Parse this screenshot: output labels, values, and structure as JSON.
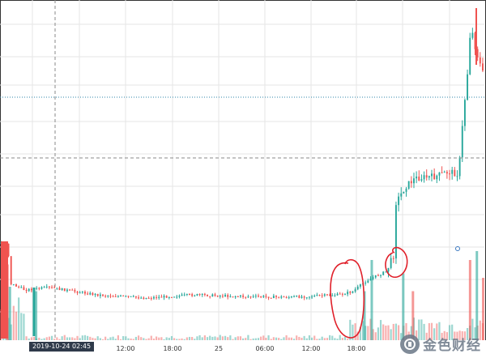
{
  "chart_data": {
    "type": "candlestick",
    "x_tick_labels": [
      "12:00",
      "18:00",
      "25",
      "06:00",
      "12:00",
      "18:00"
    ],
    "crosshair_time_label": "2019-10-24   02:45",
    "colors": {
      "up": "#26a69a",
      "down": "#ef5350",
      "grid": "#e6e6e6",
      "crosshair": "#8a8a8a",
      "price_line": "#2e86a8",
      "annotation": "#e0202a",
      "badge_bg": "#2f3a4a"
    },
    "price_trend": [
      [
        0,
        300
      ],
      [
        0.014,
        300
      ],
      [
        0.02,
        350
      ],
      [
        0.05,
        358
      ],
      [
        0.1,
        355
      ],
      [
        0.2,
        364
      ],
      [
        0.3,
        368
      ],
      [
        0.4,
        364
      ],
      [
        0.5,
        366
      ],
      [
        0.6,
        367
      ],
      [
        0.7,
        364
      ],
      [
        0.73,
        360
      ],
      [
        0.76,
        346
      ],
      [
        0.8,
        335
      ],
      [
        0.815,
        315
      ],
      [
        0.82,
        250
      ],
      [
        0.84,
        230
      ],
      [
        0.86,
        220
      ],
      [
        0.9,
        218
      ],
      [
        0.93,
        212
      ],
      [
        0.95,
        215
      ],
      [
        0.96,
        140
      ],
      [
        0.97,
        80
      ],
      [
        0.975,
        30
      ],
      [
        0.985,
        60
      ],
      [
        1.0,
        90
      ]
    ],
    "volume_spikes": [
      {
        "x": 0.013,
        "v": 0.85,
        "c": "down"
      },
      {
        "x": 0.018,
        "v": 0.6,
        "c": "up"
      },
      {
        "x": 0.072,
        "v": 0.55,
        "c": "up"
      },
      {
        "x": 0.75,
        "v": 0.55,
        "c": "up"
      },
      {
        "x": 0.765,
        "v": 0.9,
        "c": "up"
      },
      {
        "x": 0.83,
        "v": 0.75,
        "c": "up"
      },
      {
        "x": 0.85,
        "v": 0.55,
        "c": "down"
      },
      {
        "x": 0.968,
        "v": 0.9,
        "c": "down"
      },
      {
        "x": 0.982,
        "v": 1.0,
        "c": "up"
      },
      {
        "x": 0.995,
        "v": 0.7,
        "c": "down"
      }
    ]
  },
  "watermark": {
    "text": "金色财经",
    "icon": "jinse-logo-icon"
  }
}
